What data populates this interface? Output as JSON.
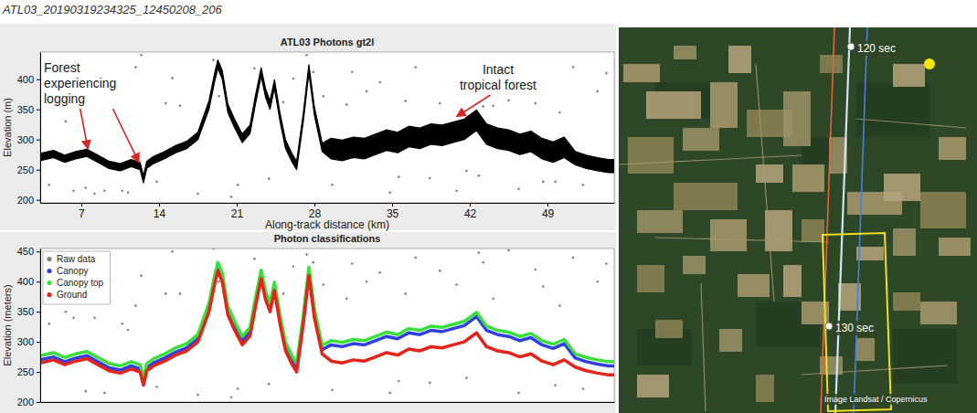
{
  "title": "ATL03_20190319234325_12450208_206",
  "chart_data": [
    {
      "type": "band",
      "title": "ATL03 Photons gt2l",
      "xlabel": "Along-track distance (km)",
      "ylabel": "Elevation (m)",
      "x": [
        3.3,
        4.5,
        5.5,
        6.5,
        7.5,
        8.5,
        9.5,
        10.5,
        11.5,
        12.3,
        12.6,
        12.9,
        13.5,
        14.5,
        15.5,
        16.5,
        17.5,
        18.5,
        19.0,
        19.3,
        19.7,
        20.2,
        20.8,
        21.5,
        22.2,
        22.7,
        23.2,
        23.6,
        24.0,
        24.4,
        24.9,
        25.4,
        26.0,
        26.4,
        27.0,
        27.5,
        28.0,
        28.7,
        29.5,
        30.5,
        31.5,
        32.5,
        33.5,
        34.5,
        35.5,
        36.5,
        37.5,
        38.5,
        39.5,
        40.5,
        41.5,
        42.6,
        43.5,
        44.5,
        45.5,
        46.5,
        47.5,
        48.5,
        49.5,
        50.5,
        51.5,
        52.5,
        53.5,
        54.5,
        55
      ],
      "xlim": [
        3.3,
        55
      ],
      "ylim": [
        195,
        445
      ],
      "xticks": [
        7,
        14,
        21,
        28,
        35,
        42,
        49
      ],
      "yticks": [
        200,
        250,
        300,
        350,
        400
      ],
      "series": [
        {
          "type": "scatter",
          "color": "#808080",
          "marker": "dot",
          "x": [
            4.1,
            5.6,
            6.3,
            8.2,
            9.1,
            10.7,
            11.9,
            12.4,
            13.8,
            15.2,
            15.9,
            17.5,
            18.9,
            19.4,
            21.1,
            22.6,
            23.9,
            25.2,
            26.1,
            27.3,
            28.8,
            29.6,
            30.9,
            31.4,
            32.7,
            33.9,
            34.8,
            36.2,
            37.1,
            38.4,
            39.3,
            40.8,
            41.7,
            43.2,
            44.1,
            45.5,
            46.4,
            47.9,
            48.6,
            50.1,
            51.3,
            52.2,
            53.5,
            54.3,
            7.4,
            14.6,
            20.5,
            27.9,
            35.6,
            42.8,
            49.7,
            11.2
          ],
          "values": [
            225,
            330,
            215,
            210,
            215,
            215,
            420,
            440,
            230,
            402,
            356,
            210,
            432,
            372,
            225,
            418,
            235,
            362,
            401,
            440,
            372,
            225,
            358,
            412,
            380,
            395,
            212,
            364,
            420,
            236,
            360,
            215,
            248,
            355,
            356,
            365,
            218,
            360,
            230,
            345,
            420,
            225,
            380,
            410,
            220,
            360,
            205,
            412,
            238,
            240,
            230,
            212
          ]
        },
        {
          "color": "#000000",
          "values": [
            265,
            270,
            262,
            268,
            272,
            262,
            252,
            248,
            255,
            250,
            228,
            252,
            260,
            268,
            278,
            285,
            300,
            350,
            395,
            418,
            400,
            345,
            320,
            295,
            310,
            360,
            405,
            370,
            350,
            385,
            330,
            285,
            262,
            250,
            330,
            410,
            340,
            280,
            268,
            265,
            270,
            268,
            275,
            282,
            278,
            288,
            285,
            292,
            290,
            295,
            300,
            315,
            292,
            285,
            282,
            275,
            280,
            268,
            262,
            270,
            258,
            252,
            248,
            245,
            245
          ],
          "upper": [
            277,
            282,
            274,
            280,
            284,
            274,
            264,
            260,
            267,
            262,
            240,
            264,
            272,
            280,
            290,
            297,
            312,
            364,
            409,
            432,
            414,
            359,
            334,
            309,
            324,
            374,
            419,
            384,
            364,
            399,
            344,
            299,
            276,
            264,
            344,
            424,
            354,
            294,
            302,
            299,
            304,
            302,
            309,
            316,
            312,
            322,
            319,
            326,
            324,
            329,
            334,
            349,
            326,
            319,
            316,
            309,
            314,
            302,
            296,
            304,
            280,
            274,
            270,
            267,
            267
          ]
        }
      ],
      "annotations": [
        {
          "lines": [
            "Forest",
            "experiencing",
            "logging"
          ],
          "arrows": [
            {
              "x": 7.6,
              "y": 284
            },
            {
              "x": 12.2,
              "y": 262
            }
          ]
        },
        {
          "lines": [
            "Intact",
            "tropical forest"
          ],
          "arrows": [
            {
              "x": 40.8,
              "y": 338
            }
          ]
        }
      ]
    },
    {
      "type": "line",
      "title": "Photon classifications",
      "ylabel": "Elevation (meters)",
      "x": [
        3.3,
        4.5,
        5.5,
        6.5,
        7.5,
        8.5,
        9.5,
        10.5,
        11.5,
        12.3,
        12.6,
        12.9,
        13.5,
        14.5,
        15.5,
        16.5,
        17.5,
        18.5,
        19.0,
        19.3,
        19.7,
        20.2,
        20.8,
        21.5,
        22.2,
        22.7,
        23.2,
        23.6,
        24.0,
        24.4,
        24.9,
        25.4,
        26.0,
        26.4,
        27.0,
        27.5,
        28.0,
        28.7,
        29.5,
        30.5,
        31.5,
        32.5,
        33.5,
        34.5,
        35.5,
        36.5,
        37.5,
        38.5,
        39.5,
        40.5,
        41.5,
        42.6,
        43.5,
        44.5,
        45.5,
        46.5,
        47.5,
        48.5,
        49.5,
        50.5,
        51.5,
        52.5,
        53.5,
        54.5,
        55
      ],
      "xlim": [
        3.3,
        55
      ],
      "ylim": [
        200,
        455
      ],
      "yticks": [
        200,
        250,
        300,
        350,
        400,
        450
      ],
      "tick_labels": "y",
      "legend": "upper left",
      "series": [
        {
          "name": "Raw data",
          "type": "scatter",
          "color": "#808080",
          "marker": "dot",
          "x": [
            4.1,
            5.6,
            6.3,
            8.2,
            9.1,
            10.7,
            11.9,
            12.4,
            13.8,
            15.2,
            15.9,
            17.5,
            18.9,
            19.4,
            21.1,
            22.6,
            23.9,
            25.2,
            26.1,
            27.3,
            28.8,
            29.6,
            30.9,
            31.4,
            32.7,
            33.9,
            34.8,
            36.2,
            37.1,
            38.4,
            39.3,
            40.8,
            41.7,
            43.2,
            44.1,
            45.5,
            46.4,
            47.9,
            48.6,
            50.1,
            51.3,
            52.2,
            53.5,
            54.3,
            7.4,
            14.6,
            20.5,
            27.9,
            35.6,
            42.8,
            49.7,
            11.2
          ],
          "values": [
            330,
            350,
            340,
            340,
            215,
            330,
            360,
            410,
            225,
            450,
            380,
            212,
            455,
            400,
            222,
            438,
            230,
            380,
            425,
            445,
            395,
            220,
            372,
            430,
            400,
            415,
            215,
            380,
            440,
            232,
            418,
            395,
            240,
            432,
            372,
            452,
            215,
            420,
            392,
            360,
            440,
            222,
            400,
            430,
            218,
            380,
            208,
            432,
            235,
            448,
            228,
            320
          ]
        },
        {
          "name": "Canopy",
          "color": "#2f3fe0",
          "values": [
            270,
            275,
            267,
            273,
            277,
            267,
            257,
            253,
            260,
            255,
            233,
            257,
            265,
            273,
            283,
            290,
            305,
            357,
            402,
            425,
            407,
            352,
            327,
            302,
            317,
            367,
            412,
            377,
            357,
            392,
            337,
            292,
            269,
            257,
            337,
            417,
            347,
            287,
            295,
            292,
            297,
            295,
            302,
            309,
            305,
            315,
            312,
            319,
            317,
            322,
            327,
            342,
            319,
            312,
            309,
            302,
            307,
            295,
            289,
            297,
            273,
            267,
            263,
            260,
            260
          ]
        },
        {
          "name": "Canopy top",
          "color": "#39e03a",
          "values": [
            277,
            282,
            274,
            280,
            284,
            274,
            264,
            260,
            267,
            262,
            240,
            264,
            272,
            280,
            290,
            297,
            312,
            364,
            409,
            432,
            414,
            359,
            334,
            309,
            324,
            374,
            419,
            384,
            364,
            399,
            344,
            299,
            276,
            264,
            344,
            424,
            354,
            294,
            302,
            299,
            304,
            302,
            309,
            316,
            312,
            322,
            319,
            326,
            324,
            329,
            334,
            349,
            326,
            319,
            316,
            309,
            314,
            302,
            296,
            304,
            280,
            274,
            270,
            267,
            267
          ]
        },
        {
          "name": "Ground",
          "color": "#e5231b",
          "values": [
            265,
            270,
            262,
            268,
            272,
            262,
            252,
            248,
            255,
            250,
            228,
            252,
            260,
            268,
            278,
            285,
            300,
            350,
            395,
            418,
            400,
            345,
            320,
            295,
            310,
            360,
            405,
            370,
            350,
            385,
            330,
            285,
            262,
            250,
            330,
            410,
            340,
            280,
            268,
            265,
            270,
            268,
            275,
            282,
            278,
            288,
            285,
            292,
            290,
            295,
            300,
            315,
            292,
            285,
            282,
            275,
            280,
            268,
            262,
            270,
            258,
            252,
            248,
            245,
            245
          ]
        }
      ]
    }
  ],
  "map": {
    "labels": [
      "120 sec",
      "130 sec"
    ],
    "credit": "Image Landsat / Copernicus"
  }
}
